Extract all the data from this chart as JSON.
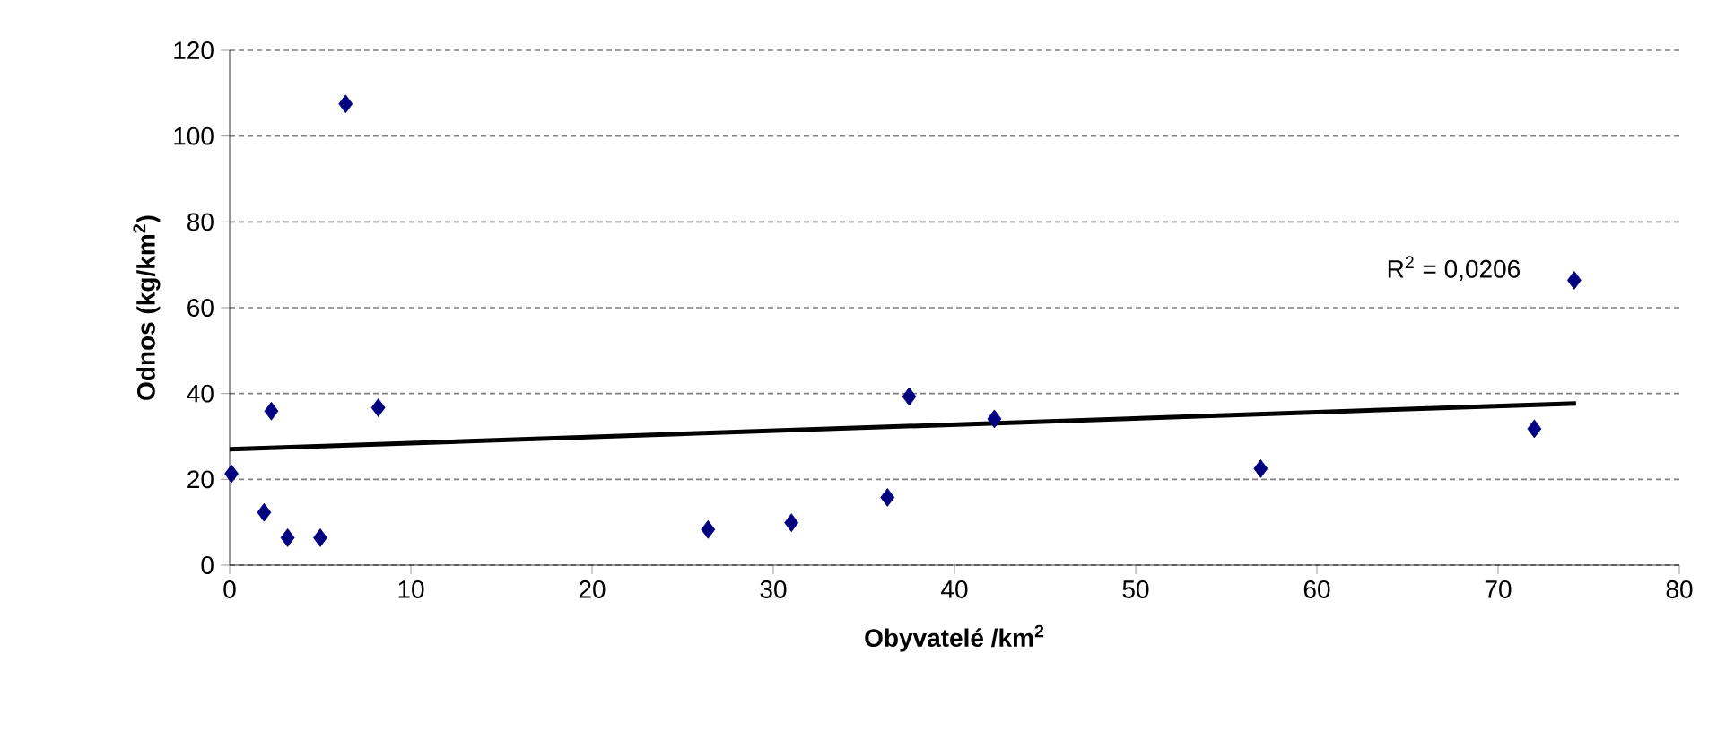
{
  "chart_data": {
    "type": "scatter",
    "xlabel": "Obyvatelé /km$^{2}$",
    "ylabel": "Odnos  (kg/km$^{2}$)",
    "xlim": [
      0,
      80
    ],
    "xticks": [
      0,
      10,
      20,
      30,
      40,
      50,
      60,
      70,
      80
    ],
    "ylim": [
      0,
      120
    ],
    "yticks": [
      0,
      20,
      40,
      60,
      80,
      100,
      120
    ],
    "grid": "y",
    "annotations": [
      "R$^{2}$ = 0,0206"
    ],
    "series": [
      {
        "marker": "diamond",
        "color": "#000080",
        "x": [
          0.1,
          1.9,
          2.3,
          3.2,
          5.0,
          6.4,
          8.2,
          26.4,
          31.0,
          36.3,
          37.5,
          42.2,
          56.9,
          72.0,
          74.2
        ],
        "values": [
          21.3,
          12.3,
          35.9,
          6.4,
          6.4,
          107.5,
          36.7,
          8.3,
          9.9,
          15.8,
          39.3,
          34.1,
          22.5,
          31.8,
          66.4
        ]
      },
      {
        "type": "line",
        "color": "#000000",
        "x": [
          0,
          74.3
        ],
        "values": [
          27.0,
          37.7
        ]
      }
    ]
  }
}
